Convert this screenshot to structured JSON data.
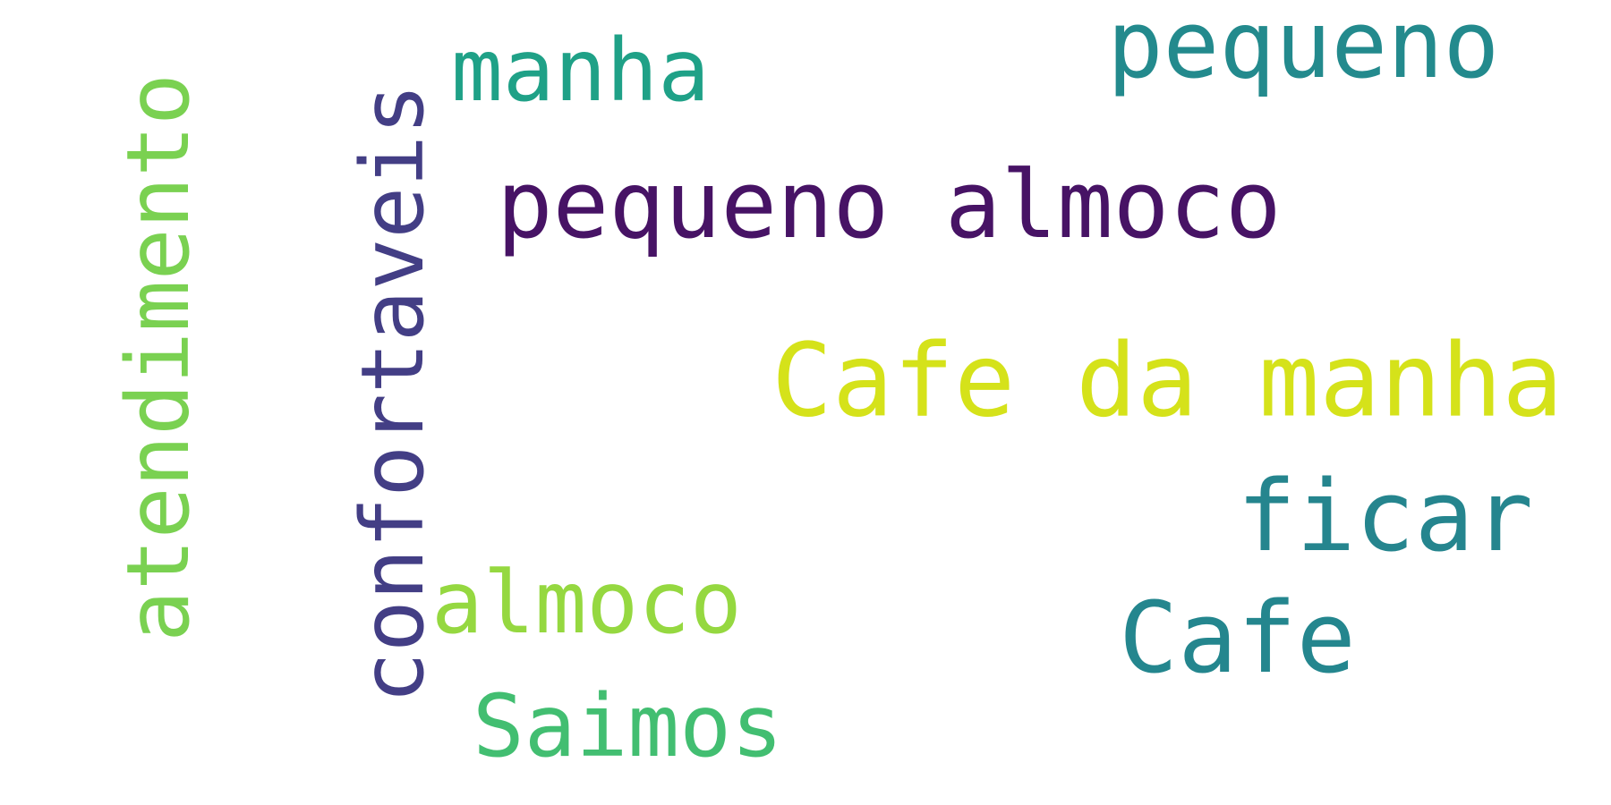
{
  "word_cloud": {
    "background": "#ffffff",
    "words": [
      {
        "id": "pequeno-almoco",
        "text": "pequeno almoco",
        "color": "#471365",
        "size": 104
      },
      {
        "id": "cafe-da-manha",
        "text": "Cafe da manha",
        "color": "#d5e21a",
        "size": 113
      },
      {
        "id": "confortaveis",
        "text": "confortaveis",
        "color": "#433e85",
        "size": 96
      },
      {
        "id": "atendimento",
        "text": "atendimento",
        "color": "#7ad151",
        "size": 96
      },
      {
        "id": "pequeno",
        "text": "pequeno",
        "color": "#238a8d",
        "size": 104
      },
      {
        "id": "manha",
        "text": "manha",
        "color": "#1fa187",
        "size": 96
      },
      {
        "id": "ficar",
        "text": "ficar",
        "color": "#25858e",
        "size": 110
      },
      {
        "id": "almoco",
        "text": "almoco",
        "color": "#95d840",
        "size": 96
      },
      {
        "id": "cafe",
        "text": "Cafe",
        "color": "#24868e",
        "size": 110
      },
      {
        "id": "saimos",
        "text": "Saimos",
        "color": "#42be71",
        "size": 96
      }
    ]
  }
}
